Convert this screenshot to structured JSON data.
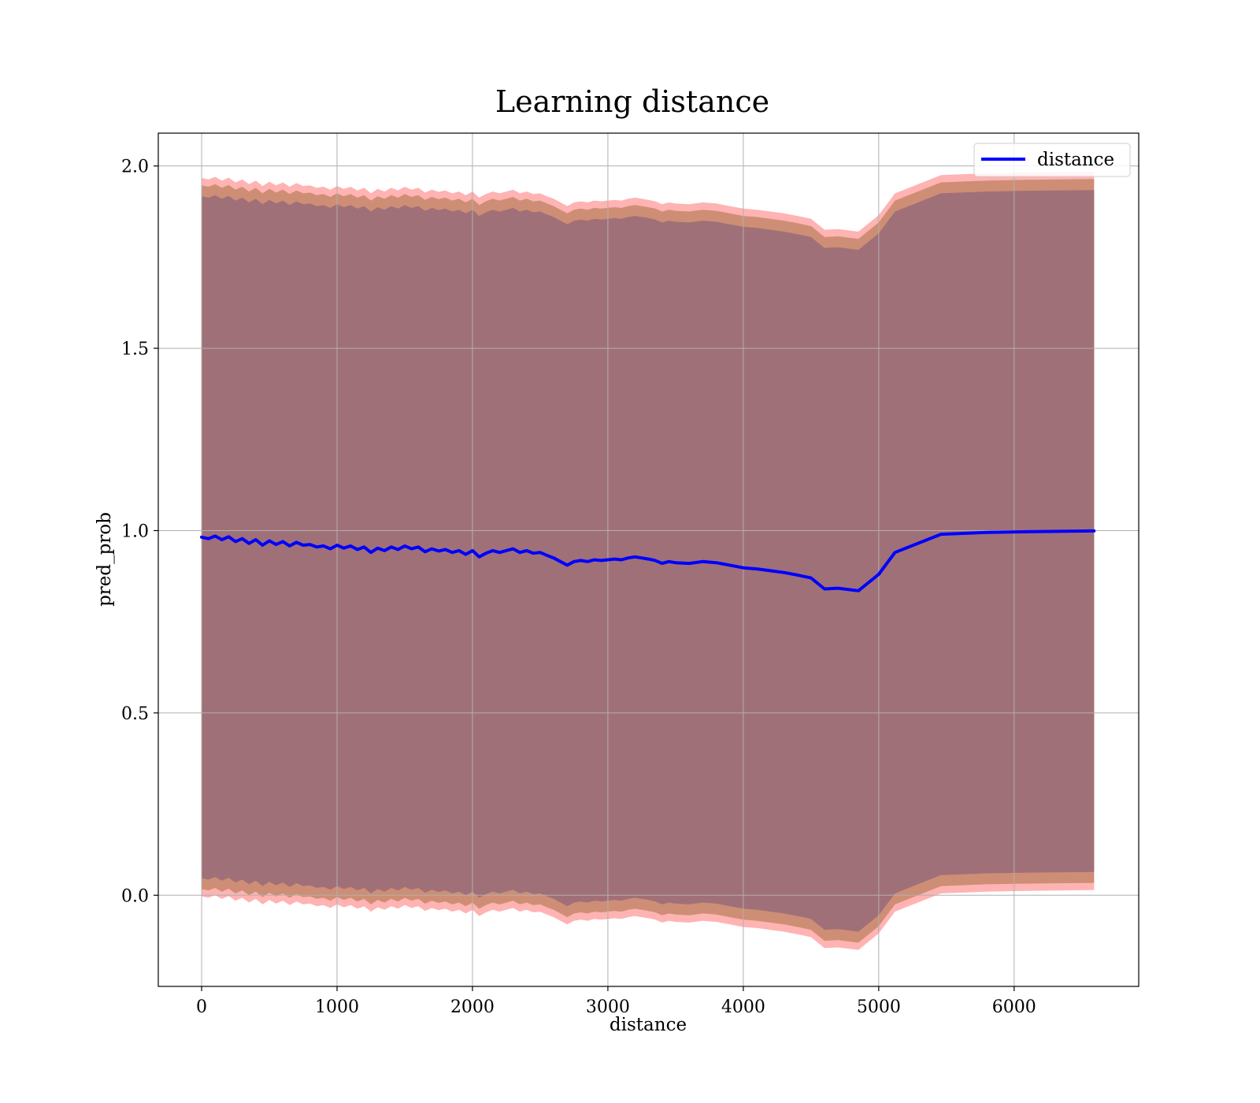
{
  "chart_data": {
    "type": "line",
    "title": "Learning distance",
    "xlabel": "distance",
    "ylabel": "pred_prob",
    "xlim": [
      -320,
      6920
    ],
    "ylim": [
      -0.25,
      2.09
    ],
    "xticks": [
      0,
      1000,
      2000,
      3000,
      4000,
      5000,
      6000
    ],
    "xtick_labels": [
      "0",
      "1000",
      "2000",
      "3000",
      "4000",
      "5000",
      "6000"
    ],
    "yticks": [
      0.0,
      0.5,
      1.0,
      1.5,
      2.0
    ],
    "ytick_labels": [
      "0.0",
      "0.5",
      "1.0",
      "1.5",
      "2.0"
    ],
    "grid": true,
    "legend": {
      "position": "top-right",
      "entries": [
        "distance"
      ]
    },
    "colors": {
      "line": "#0000ff",
      "band_outer": "#ff9999",
      "band_mid": "#c9896e",
      "band_inner": "#a07078"
    },
    "series": [
      {
        "name": "distance",
        "x": [
          0,
          50,
          100,
          150,
          200,
          250,
          300,
          350,
          400,
          450,
          500,
          550,
          600,
          650,
          700,
          750,
          800,
          850,
          900,
          950,
          1000,
          1050,
          1100,
          1150,
          1200,
          1250,
          1300,
          1350,
          1400,
          1450,
          1500,
          1550,
          1600,
          1650,
          1700,
          1750,
          1800,
          1850,
          1900,
          1950,
          2000,
          2050,
          2100,
          2150,
          2200,
          2250,
          2300,
          2350,
          2400,
          2450,
          2500,
          2550,
          2600,
          2650,
          2700,
          2750,
          2800,
          2850,
          2900,
          2950,
          3000,
          3050,
          3100,
          3150,
          3200,
          3250,
          3300,
          3350,
          3400,
          3450,
          3500,
          3600,
          3700,
          3800,
          3900,
          4000,
          4100,
          4200,
          4300,
          4400,
          4500,
          4600,
          4700,
          4850,
          5000,
          5120,
          5460,
          5800,
          6100,
          6590
        ],
        "y": [
          0.982,
          0.978,
          0.985,
          0.975,
          0.983,
          0.97,
          0.978,
          0.965,
          0.975,
          0.96,
          0.972,
          0.962,
          0.97,
          0.958,
          0.968,
          0.96,
          0.962,
          0.955,
          0.958,
          0.95,
          0.96,
          0.952,
          0.958,
          0.948,
          0.955,
          0.94,
          0.952,
          0.945,
          0.955,
          0.948,
          0.958,
          0.95,
          0.955,
          0.942,
          0.95,
          0.944,
          0.948,
          0.94,
          0.945,
          0.935,
          0.945,
          0.928,
          0.938,
          0.945,
          0.94,
          0.945,
          0.95,
          0.94,
          0.945,
          0.938,
          0.94,
          0.932,
          0.925,
          0.915,
          0.905,
          0.915,
          0.918,
          0.915,
          0.92,
          0.918,
          0.92,
          0.922,
          0.92,
          0.925,
          0.928,
          0.925,
          0.922,
          0.918,
          0.91,
          0.915,
          0.912,
          0.91,
          0.915,
          0.912,
          0.905,
          0.898,
          0.895,
          0.89,
          0.885,
          0.878,
          0.87,
          0.84,
          0.842,
          0.835,
          0.88,
          0.94,
          0.99,
          0.995,
          0.997,
          0.999
        ]
      }
    ],
    "bands": [
      {
        "offset_upper": 0.985,
        "offset_lower": 0.985
      },
      {
        "offset_upper": 0.965,
        "offset_lower": 0.965
      },
      {
        "offset_upper": 0.935,
        "offset_lower": 0.935
      }
    ]
  }
}
